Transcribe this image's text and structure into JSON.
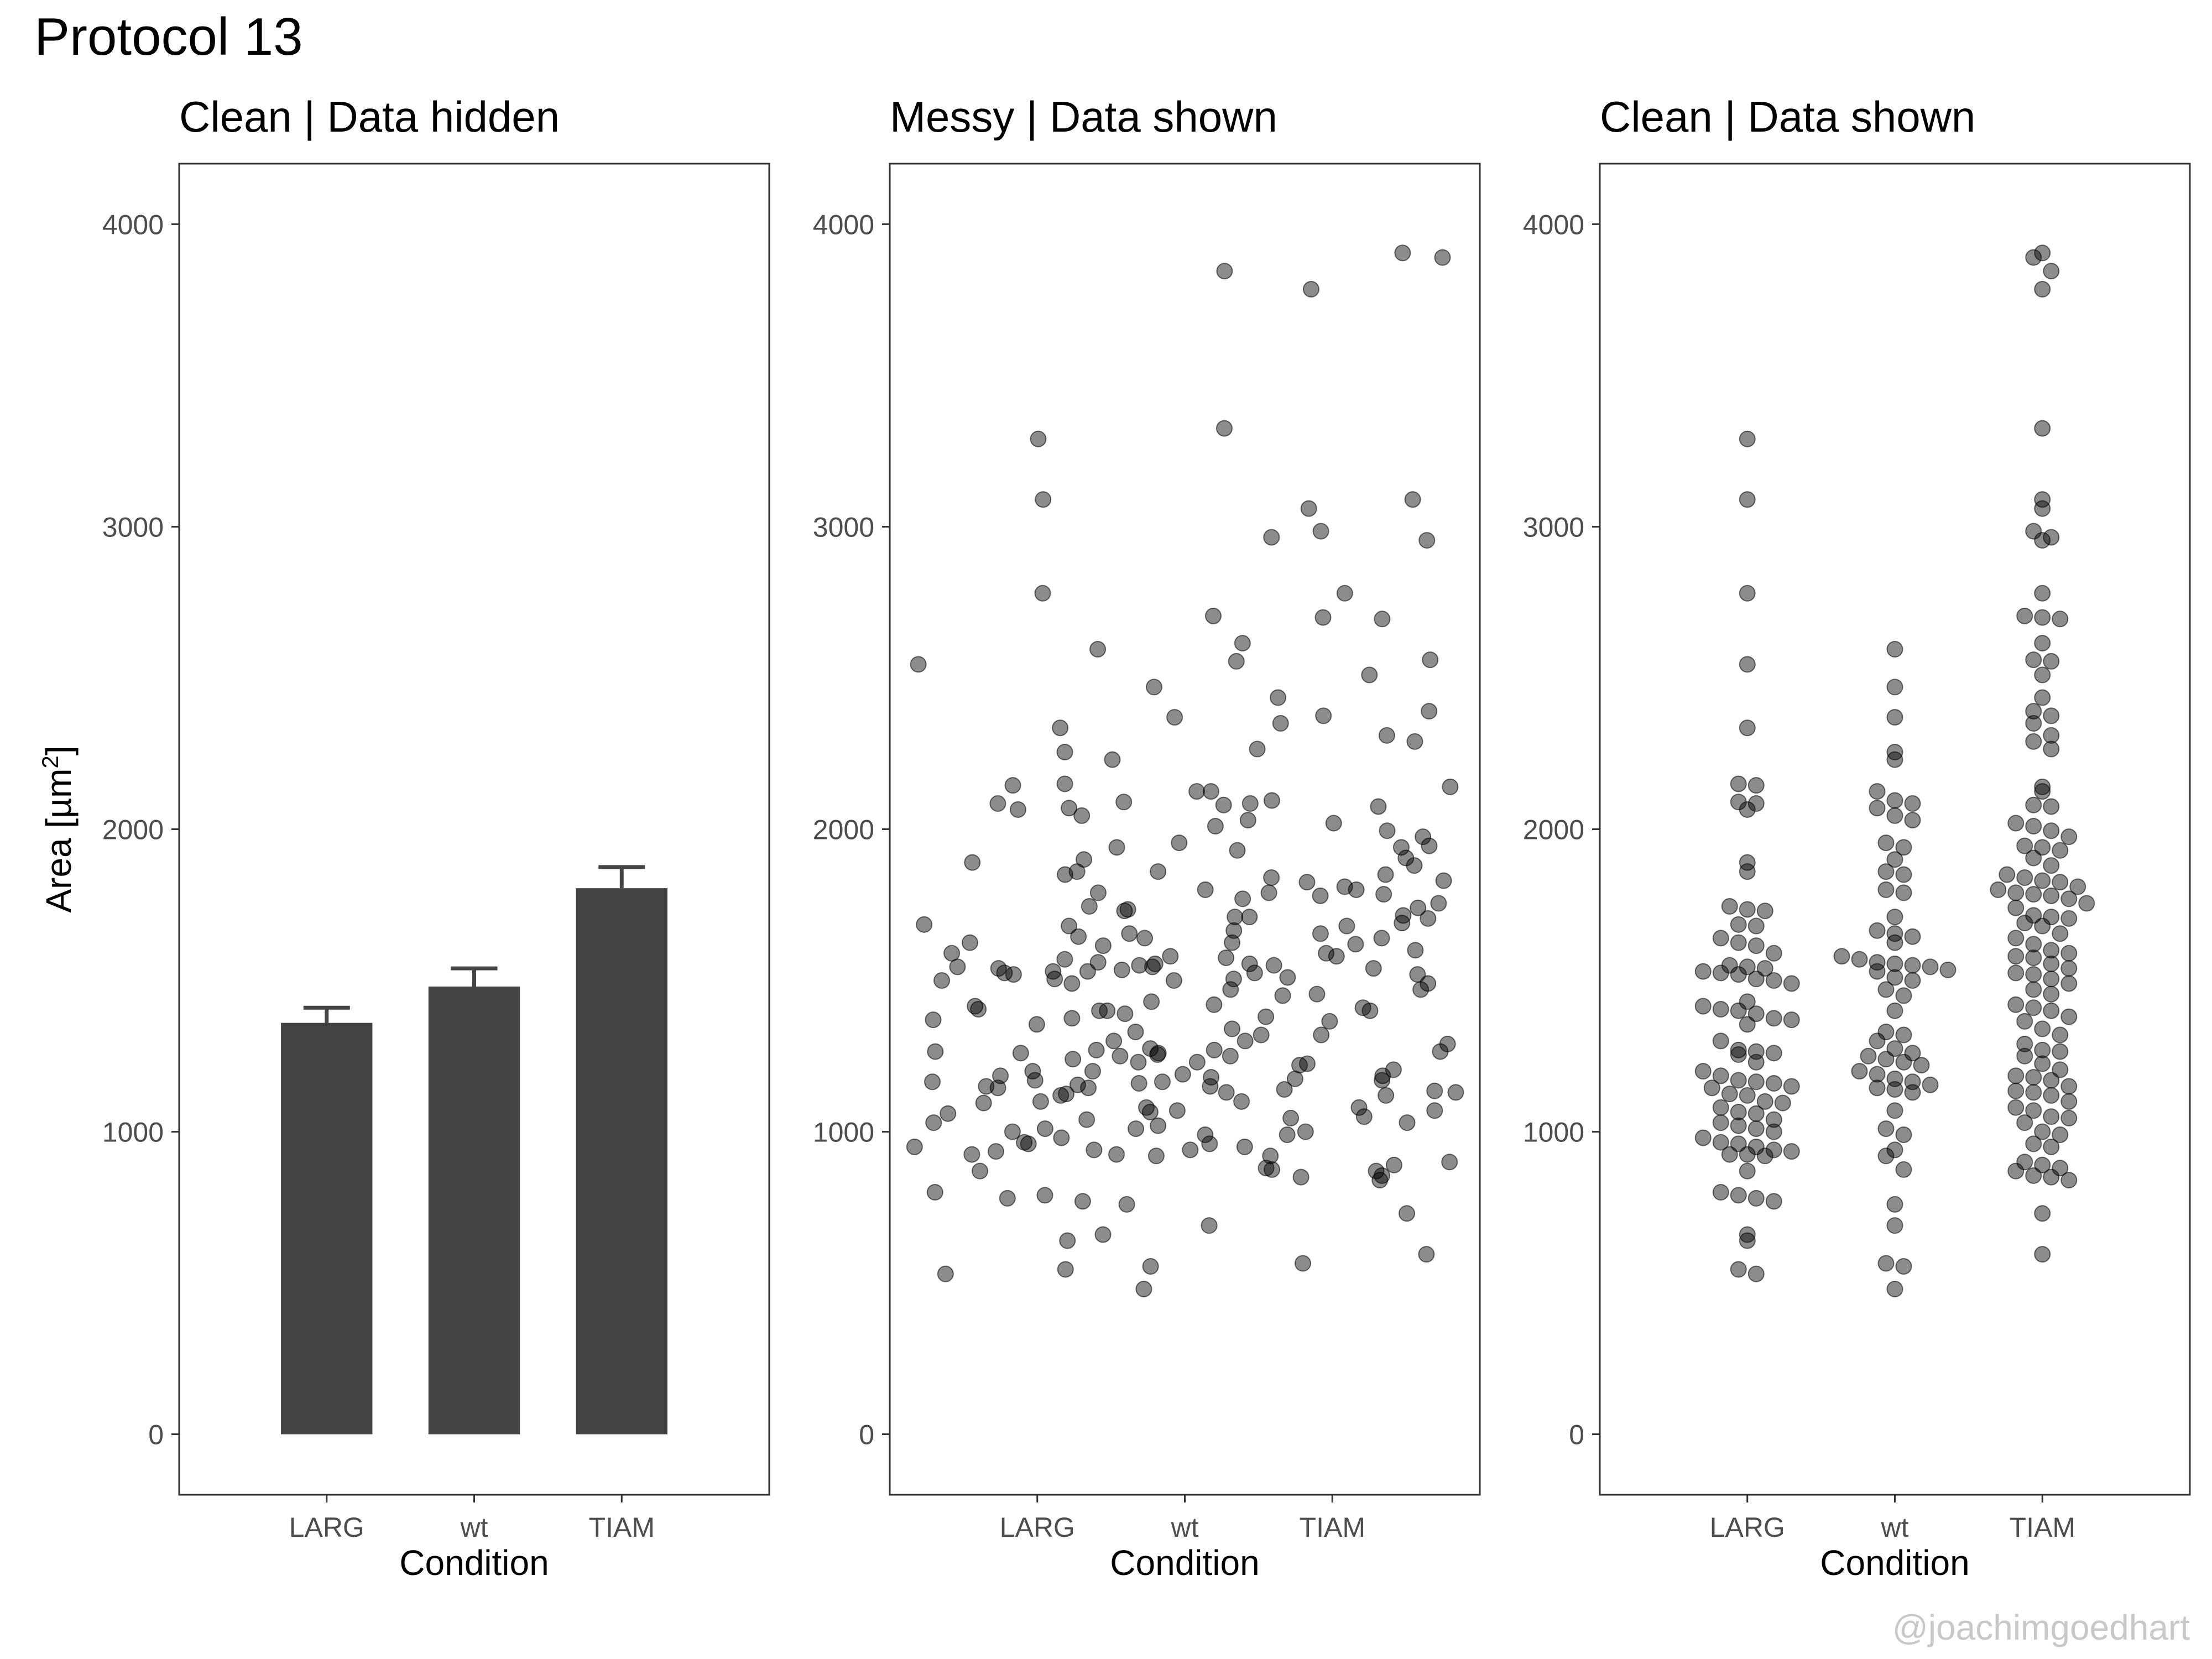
{
  "title": "Protocol 13",
  "credit": "@joachimgoedhart",
  "chart_data": [
    {
      "type": "bar",
      "title": "Clean | Data hidden",
      "xlabel": "Condition",
      "ylabel": "Area [µm²]",
      "ylabel_main": "Area [µm",
      "ylabel_sup": "2",
      "ylabel_end": "]",
      "categories": [
        "LARG",
        "wt",
        "TIAM"
      ],
      "values": [
        1360,
        1480,
        1805
      ],
      "error_upper": [
        1410,
        1540,
        1875
      ],
      "ylim": [
        -200,
        4200
      ],
      "yticks": [
        0,
        1000,
        2000,
        3000,
        4000
      ],
      "bar_color": "#444444",
      "grid": false
    },
    {
      "type": "scatter",
      "title": "Messy | Data shown",
      "xlabel": "Condition",
      "categories": [
        "LARG",
        "wt",
        "TIAM"
      ],
      "ylim": [
        -200,
        4200
      ],
      "yticks": [
        0,
        1000,
        2000,
        3000,
        4000
      ],
      "point_color": "#000000",
      "point_alpha": 0.45,
      "grid": false,
      "jitter": true,
      "series": [
        {
          "values": [
            3290,
            3090,
            2780,
            2545,
            2335,
            2150,
            2145,
            2090,
            2085,
            2065,
            1890,
            1860,
            1745,
            1735,
            1730,
            1685,
            1680,
            1640,
            1625,
            1615,
            1590,
            1550,
            1545,
            1540,
            1530,
            1525,
            1520,
            1505,
            1500,
            1490,
            1430,
            1415,
            1405,
            1400,
            1390,
            1375,
            1370,
            1355,
            1300,
            1270,
            1265,
            1260,
            1255,
            1230,
            1200,
            1185,
            1170,
            1165,
            1160,
            1150,
            1145,
            1125,
            1120,
            1100,
            1095,
            1080,
            1065,
            1060,
            1040,
            1030,
            1020,
            1010,
            1000,
            980,
            965,
            960,
            950,
            940,
            935,
            925,
            925,
            920,
            870,
            800,
            790,
            780,
            770,
            660,
            640,
            545,
            530
          ]
        },
        {
          "values": [
            2595,
            2470,
            2370,
            2255,
            2230,
            2125,
            2095,
            2085,
            2070,
            2045,
            2030,
            1955,
            1940,
            1900,
            1860,
            1850,
            1800,
            1790,
            1710,
            1665,
            1655,
            1645,
            1625,
            1580,
            1570,
            1560,
            1555,
            1550,
            1545,
            1535,
            1530,
            1510,
            1500,
            1470,
            1450,
            1400,
            1330,
            1320,
            1300,
            1275,
            1260,
            1250,
            1240,
            1230,
            1220,
            1200,
            1190,
            1175,
            1165,
            1155,
            1145,
            1140,
            1130,
            1070,
            1010,
            990,
            940,
            920,
            875,
            760,
            690,
            565,
            555,
            480
          ]
        },
        {
          "values": [
            3905,
            3890,
            3845,
            3785,
            3325,
            3090,
            3060,
            2985,
            2965,
            2955,
            2780,
            2705,
            2700,
            2695,
            2615,
            2560,
            2555,
            2510,
            2435,
            2390,
            2375,
            2350,
            2310,
            2290,
            2265,
            2140,
            2125,
            2080,
            2075,
            2020,
            2010,
            1995,
            1975,
            1945,
            1940,
            1930,
            1905,
            1880,
            1850,
            1840,
            1830,
            1825,
            1810,
            1800,
            1790,
            1785,
            1780,
            1770,
            1755,
            1740,
            1715,
            1710,
            1705,
            1690,
            1680,
            1655,
            1640,
            1620,
            1600,
            1590,
            1580,
            1575,
            1555,
            1540,
            1525,
            1520,
            1505,
            1490,
            1470,
            1455,
            1420,
            1410,
            1400,
            1380,
            1365,
            1340,
            1320,
            1290,
            1270,
            1265,
            1250,
            1225,
            1205,
            1185,
            1180,
            1170,
            1150,
            1135,
            1130,
            1120,
            1100,
            1080,
            1070,
            1050,
            1045,
            1030,
            1000,
            990,
            960,
            950,
            900,
            890,
            880,
            870,
            855,
            850,
            840,
            730,
            595
          ]
        }
      ]
    },
    {
      "type": "scatter",
      "title": "Clean | Data shown",
      "xlabel": "Condition",
      "categories": [
        "LARG",
        "wt",
        "TIAM"
      ],
      "ylim": [
        -200,
        4200
      ],
      "yticks": [
        0,
        1000,
        2000,
        3000,
        4000
      ],
      "point_color": "#000000",
      "point_alpha": 0.45,
      "grid": false,
      "beeswarm": true,
      "series": [
        {
          "values": [
            3290,
            3090,
            2780,
            2545,
            2335,
            2150,
            2145,
            2090,
            2085,
            2065,
            1890,
            1860,
            1745,
            1735,
            1730,
            1685,
            1680,
            1640,
            1625,
            1615,
            1590,
            1550,
            1545,
            1540,
            1530,
            1525,
            1520,
            1505,
            1500,
            1490,
            1430,
            1415,
            1405,
            1400,
            1390,
            1375,
            1370,
            1355,
            1300,
            1270,
            1265,
            1260,
            1255,
            1230,
            1200,
            1185,
            1170,
            1165,
            1160,
            1150,
            1145,
            1125,
            1120,
            1100,
            1095,
            1080,
            1065,
            1060,
            1040,
            1030,
            1020,
            1010,
            1000,
            980,
            965,
            960,
            950,
            940,
            935,
            925,
            925,
            920,
            870,
            800,
            790,
            780,
            770,
            660,
            640,
            545,
            530
          ]
        },
        {
          "values": [
            2595,
            2470,
            2370,
            2255,
            2230,
            2125,
            2095,
            2085,
            2070,
            2045,
            2030,
            1955,
            1940,
            1900,
            1860,
            1850,
            1800,
            1790,
            1710,
            1665,
            1655,
            1645,
            1625,
            1580,
            1570,
            1560,
            1555,
            1550,
            1545,
            1535,
            1530,
            1510,
            1500,
            1470,
            1450,
            1400,
            1330,
            1320,
            1300,
            1275,
            1260,
            1250,
            1240,
            1230,
            1220,
            1200,
            1190,
            1175,
            1165,
            1155,
            1145,
            1140,
            1130,
            1070,
            1010,
            990,
            940,
            920,
            875,
            760,
            690,
            565,
            555,
            480
          ]
        },
        {
          "values": [
            3905,
            3890,
            3845,
            3785,
            3325,
            3090,
            3060,
            2985,
            2965,
            2955,
            2780,
            2705,
            2700,
            2695,
            2615,
            2560,
            2555,
            2510,
            2435,
            2390,
            2375,
            2350,
            2310,
            2290,
            2265,
            2140,
            2125,
            2080,
            2075,
            2020,
            2010,
            1995,
            1975,
            1945,
            1940,
            1930,
            1905,
            1880,
            1850,
            1840,
            1830,
            1825,
            1810,
            1800,
            1790,
            1785,
            1780,
            1770,
            1755,
            1740,
            1715,
            1710,
            1705,
            1690,
            1680,
            1655,
            1640,
            1620,
            1600,
            1590,
            1580,
            1575,
            1555,
            1540,
            1525,
            1520,
            1505,
            1490,
            1470,
            1455,
            1420,
            1410,
            1400,
            1380,
            1365,
            1340,
            1320,
            1290,
            1270,
            1265,
            1250,
            1225,
            1205,
            1185,
            1180,
            1170,
            1150,
            1135,
            1130,
            1120,
            1100,
            1080,
            1070,
            1050,
            1045,
            1030,
            1000,
            990,
            960,
            950,
            900,
            890,
            880,
            870,
            855,
            850,
            840,
            730,
            595
          ]
        }
      ]
    }
  ]
}
